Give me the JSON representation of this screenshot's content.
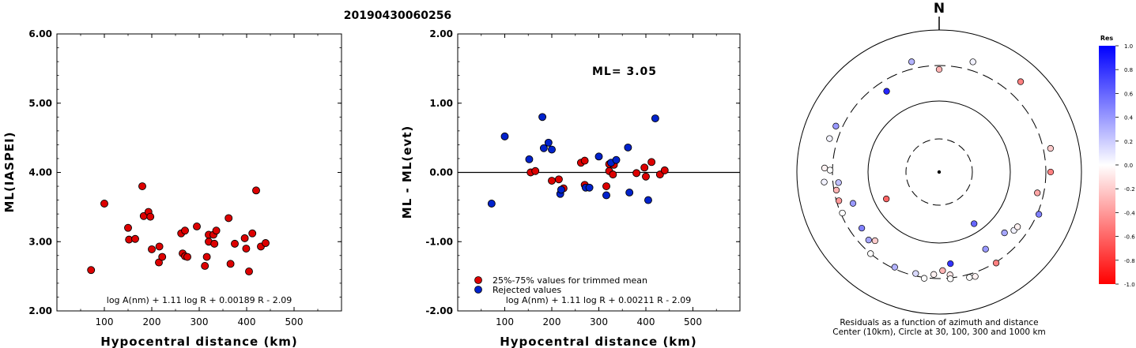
{
  "event_id": "20190430060256",
  "chart_data": [
    {
      "type": "scatter",
      "title": "",
      "xlabel": "Hypocentral distance (km)",
      "ylabel": "ML(IASPEI)",
      "xlim": [
        0,
        600
      ],
      "ylim": [
        2.0,
        6.0
      ],
      "xticks": [
        "100",
        "200",
        "300",
        "400",
        "500"
      ],
      "yticks": [
        "2.00",
        "3.00",
        "4.00",
        "5.00",
        "6.00"
      ],
      "formula": "log A(nm) + 1.11 log R + 0.00189 R - 2.09",
      "series": [
        {
          "color": "#dd0000",
          "points": [
            [
              72,
              2.59
            ],
            [
              100,
              3.55
            ],
            [
              150,
              3.2
            ],
            [
              152,
              3.03
            ],
            [
              165,
              3.04
            ],
            [
              180,
              3.8
            ],
            [
              183,
              3.37
            ],
            [
              193,
              3.43
            ],
            [
              197,
              3.36
            ],
            [
              200,
              2.89
            ],
            [
              216,
              2.93
            ],
            [
              215,
              2.7
            ],
            [
              222,
              2.78
            ],
            [
              262,
              3.12
            ],
            [
              270,
              3.16
            ],
            [
              265,
              2.83
            ],
            [
              270,
              2.79
            ],
            [
              275,
              2.78
            ],
            [
              295,
              3.22
            ],
            [
              312,
              2.65
            ],
            [
              316,
              2.78
            ],
            [
              320,
              3.1
            ],
            [
              320,
              3.0
            ],
            [
              332,
              2.97
            ],
            [
              330,
              3.1
            ],
            [
              336,
              3.16
            ],
            [
              362,
              3.34
            ],
            [
              366,
              2.68
            ],
            [
              375,
              2.97
            ],
            [
              396,
              3.05
            ],
            [
              399,
              2.9
            ],
            [
              405,
              2.57
            ],
            [
              412,
              3.12
            ],
            [
              420,
              3.74
            ],
            [
              430,
              2.93
            ],
            [
              440,
              2.98
            ]
          ]
        }
      ]
    },
    {
      "type": "scatter",
      "title": "",
      "xlabel": "Hypocentral distance (km)",
      "ylabel": "ML - ML(evt)",
      "xlim": [
        0,
        600
      ],
      "ylim": [
        -2.0,
        2.0
      ],
      "xticks": [
        "100",
        "200",
        "300",
        "400",
        "500"
      ],
      "yticks": [
        "-2.00",
        "-1.00",
        "0.00",
        "1.00",
        "2.00"
      ],
      "annotation": "ML= 3.05",
      "formula": "log A(nm) + 1.11 log R + 0.00211 R - 2.09",
      "legend": [
        {
          "label": "25%-75% values for trimmed mean",
          "color": "#dd0000"
        },
        {
          "label": "Rejected values",
          "color": "#0022cc"
        }
      ],
      "series": [
        {
          "name": "25%-75% values for trimmed mean",
          "color": "#dd0000",
          "points": [
            [
              155,
              0.0
            ],
            [
              165,
              0.02
            ],
            [
              200,
              -0.12
            ],
            [
              215,
              -0.1
            ],
            [
              225,
              -0.23
            ],
            [
              262,
              0.14
            ],
            [
              270,
              0.17
            ],
            [
              270,
              -0.18
            ],
            [
              316,
              -0.2
            ],
            [
              322,
              0.02
            ],
            [
              322,
              0.12
            ],
            [
              330,
              -0.03
            ],
            [
              332,
              0.11
            ],
            [
              380,
              -0.01
            ],
            [
              397,
              0.07
            ],
            [
              400,
              -0.06
            ],
            [
              412,
              0.15
            ],
            [
              430,
              -0.03
            ],
            [
              440,
              0.03
            ]
          ]
        },
        {
          "name": "Rejected values",
          "color": "#0022cc",
          "points": [
            [
              72,
              -0.45
            ],
            [
              100,
              0.52
            ],
            [
              152,
              0.19
            ],
            [
              180,
              0.8
            ],
            [
              183,
              0.35
            ],
            [
              193,
              0.43
            ],
            [
              200,
              0.33
            ],
            [
              218,
              -0.31
            ],
            [
              220,
              -0.25
            ],
            [
              272,
              -0.22
            ],
            [
              280,
              -0.22
            ],
            [
              300,
              0.23
            ],
            [
              316,
              -0.33
            ],
            [
              326,
              0.14
            ],
            [
              337,
              0.18
            ],
            [
              362,
              0.36
            ],
            [
              365,
              -0.29
            ],
            [
              405,
              -0.4
            ],
            [
              420,
              0.78
            ]
          ]
        }
      ]
    },
    {
      "type": "scatter",
      "polar": true,
      "north_label": "N",
      "caption": "Residuals as a function of azimuth and distance",
      "subcaption": "Center (10km), Circle at 30, 100, 300 and 1000 km",
      "colorbar": {
        "title": "Res",
        "ticks": [
          "1.0",
          "0.8",
          "0.6",
          "0.4",
          "0.2",
          "0.0",
          "-0.2",
          "-0.4",
          "-0.6",
          "-0.8",
          "-1.0"
        ]
      },
      "points": [
        {
          "azimuth": 346,
          "r": 144,
          "res": 0.3
        },
        {
          "azimuth": 17,
          "r": 146,
          "res": 0.05
        },
        {
          "azimuth": 0,
          "r": 130,
          "res": -0.3
        },
        {
          "azimuth": 327,
          "r": 122,
          "res": 0.85
        },
        {
          "azimuth": 42,
          "r": 154,
          "res": -0.5
        },
        {
          "azimuth": 294,
          "r": 143,
          "res": 0.4
        },
        {
          "azimuth": 287,
          "r": 145,
          "res": 0.05
        },
        {
          "azimuth": 78,
          "r": 144,
          "res": -0.2
        },
        {
          "azimuth": 90,
          "r": 141,
          "res": -0.5
        },
        {
          "azimuth": 272,
          "r": 145,
          "res": -0.05
        },
        {
          "azimuth": 271,
          "r": 138,
          "res": 0.0
        },
        {
          "azimuth": 265,
          "r": 146,
          "res": 0.05
        },
        {
          "azimuth": 264,
          "r": 128,
          "res": 0.25
        },
        {
          "azimuth": 260,
          "r": 132,
          "res": -0.3
        },
        {
          "azimuth": 254,
          "r": 132,
          "res": -0.4
        },
        {
          "azimuth": 102,
          "r": 127,
          "res": -0.35
        },
        {
          "azimuth": 113,
          "r": 137,
          "res": 0.5
        },
        {
          "azimuth": 250,
          "r": 116,
          "res": 0.4
        },
        {
          "azimuth": 247,
          "r": 133,
          "res": 0.0
        },
        {
          "azimuth": 243,
          "r": 75,
          "res": -0.6
        },
        {
          "azimuth": 234,
          "r": 121,
          "res": 0.5
        },
        {
          "azimuth": 226,
          "r": 124,
          "res": 0.35
        },
        {
          "azimuth": 223,
          "r": 119,
          "res": -0.2
        },
        {
          "azimuth": 220,
          "r": 135,
          "res": 0.0
        },
        {
          "azimuth": 128,
          "r": 120,
          "res": 0.05
        },
        {
          "azimuth": 125,
          "r": 121,
          "res": -0.05
        },
        {
          "azimuth": 146,
          "r": 79,
          "res": 0.6
        },
        {
          "azimuth": 149,
          "r": 114,
          "res": 0.4
        },
        {
          "azimuth": 133,
          "r": 113,
          "res": 0.35
        },
        {
          "azimuth": 205,
          "r": 133,
          "res": 0.3
        },
        {
          "azimuth": 173,
          "r": 117,
          "res": 0.8
        },
        {
          "azimuth": 178,
          "r": 125,
          "res": -0.3
        },
        {
          "azimuth": 174,
          "r": 131,
          "res": -0.1
        },
        {
          "azimuth": 174,
          "r": 136,
          "res": 0.0
        },
        {
          "azimuth": 164,
          "r": 139,
          "res": 0.0
        },
        {
          "azimuth": 161,
          "r": 140,
          "res": -0.05
        },
        {
          "azimuth": 188,
          "r": 136,
          "res": 0.0
        },
        {
          "azimuth": 193,
          "r": 132,
          "res": 0.15
        },
        {
          "azimuth": 148,
          "r": 136,
          "res": -0.5
        },
        {
          "azimuth": 183,
          "r": 130,
          "res": -0.05
        }
      ]
    }
  ]
}
